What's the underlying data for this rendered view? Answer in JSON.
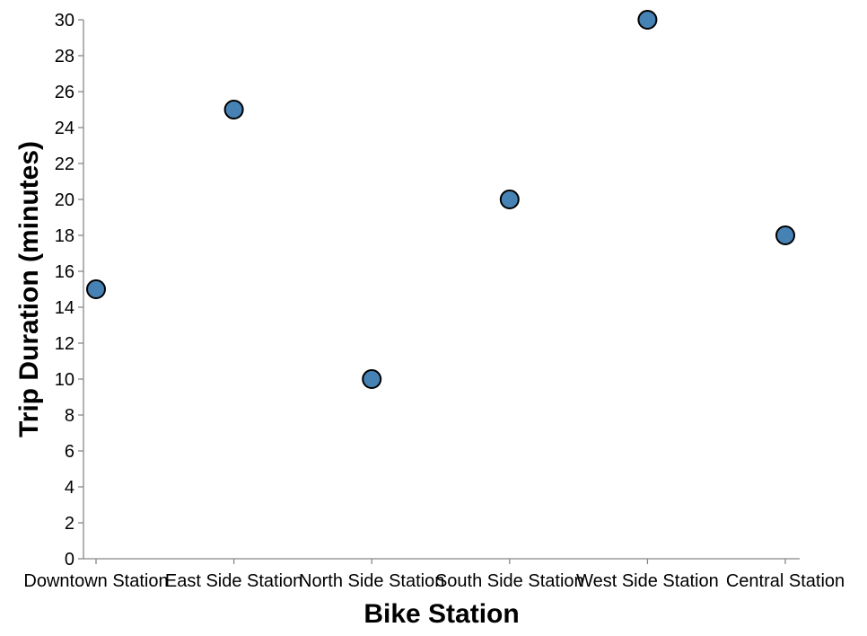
{
  "chart_data": {
    "type": "scatter",
    "xlabel": "Bike Station",
    "ylabel": "Trip Duration (minutes)",
    "categories": [
      "Downtown Station",
      "East Side Station",
      "North Side Station",
      "South Side Station",
      "West Side Station",
      "Central Station"
    ],
    "values": [
      15,
      25,
      10,
      20,
      30,
      18
    ],
    "ylim": [
      0,
      30
    ],
    "yticks": [
      "0",
      "2",
      "4",
      "6",
      "8",
      "10",
      "12",
      "14",
      "16",
      "18",
      "20",
      "22",
      "24",
      "26",
      "28",
      "30"
    ],
    "grid": false,
    "point_color": "#4682b4",
    "point_stroke": "#000000",
    "axis_color": "#888888"
  }
}
